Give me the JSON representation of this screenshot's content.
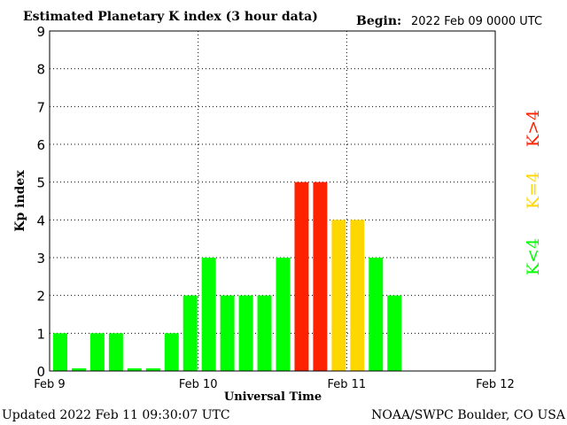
{
  "chart_data": {
    "type": "bar",
    "title": "Estimated Planetary K index (3 hour data)",
    "begin_label": "Begin:",
    "begin_value": "2022 Feb 09 0000 UTC",
    "ylabel": "Kp index",
    "xlabel": "Universal Time",
    "ylim": [
      0,
      9
    ],
    "y_ticks": [
      "0",
      "1",
      "2",
      "3",
      "4",
      "5",
      "6",
      "7",
      "8",
      "9"
    ],
    "x_tick_labels": [
      "Feb 9",
      "Feb 10",
      "Feb 11",
      "Feb 12"
    ],
    "grid": true,
    "values": [
      1,
      0.07,
      1,
      1,
      0.07,
      0.07,
      1,
      2,
      3,
      2,
      2,
      2,
      3,
      5,
      5,
      4,
      4,
      3,
      2
    ],
    "colors": [
      "#00ff00",
      "#00ff00",
      "#00ff00",
      "#00ff00",
      "#00ff00",
      "#00ff00",
      "#00ff00",
      "#00ff00",
      "#00ff00",
      "#00ff00",
      "#00ff00",
      "#00ff00",
      "#00ff00",
      "#ff2200",
      "#ff2200",
      "#ffd700",
      "#ffd700",
      "#00ff00",
      "#00ff00"
    ],
    "legend": [
      {
        "label": "K<4",
        "color": "#00ff00"
      },
      {
        "label": "K=4",
        "color": "#ffd700"
      },
      {
        "label": "K>4",
        "color": "#ff2200"
      }
    ]
  },
  "footer": {
    "updated": "Updated 2022 Feb 11 09:30:07 UTC",
    "source": "NOAA/SWPC Boulder, CO USA"
  }
}
